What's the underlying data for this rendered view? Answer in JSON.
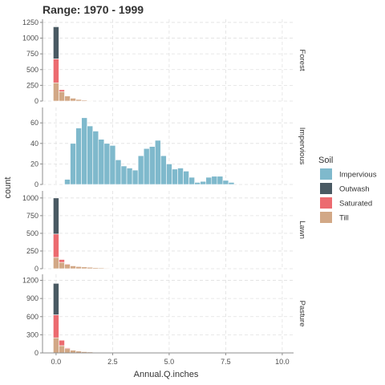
{
  "chart_data": {
    "type": "bar",
    "subtype": "faceted stacked histogram",
    "title": "Range: 1970 - 1999",
    "xlabel": "Annual.Q.inches",
    "ylabel": "count",
    "xlim": [
      -0.6,
      10.5
    ],
    "x_ticks": [
      0,
      2.5,
      5,
      7.5,
      10
    ],
    "x_tick_labels": [
      "0.0",
      "2.5",
      "5.0",
      "7.5",
      "10.0"
    ],
    "bin_width": 0.25,
    "legend": {
      "title": "Soil",
      "position": "right",
      "entries": [
        {
          "name": "Impervious",
          "color": "#7fb9cc"
        },
        {
          "name": "Outwash",
          "color": "#4a5a63"
        },
        {
          "name": "Saturated",
          "color": "#ec6b70"
        },
        {
          "name": "Till",
          "color": "#d2a886"
        }
      ]
    },
    "stack_order": [
      "Till",
      "Saturated",
      "Outwash",
      "Impervious"
    ],
    "facets": [
      {
        "label": "Forest",
        "ylim": [
          0,
          1300
        ],
        "y_ticks": [
          0,
          250,
          500,
          750,
          1000,
          1250
        ],
        "bins_x": [
          0,
          0.25,
          0.5,
          0.75,
          1.0,
          1.25,
          1.5
        ],
        "series": [
          {
            "name": "Till",
            "values": [
              290,
              150,
              80,
              45,
              25,
              15,
              8
            ]
          },
          {
            "name": "Saturated",
            "values": [
              380,
              30,
              0,
              0,
              0,
              0,
              0
            ]
          },
          {
            "name": "Outwash",
            "values": [
              510,
              0,
              0,
              0,
              0,
              0,
              0
            ]
          }
        ]
      },
      {
        "label": "Impervious",
        "ylim": [
          0,
          75
        ],
        "y_ticks": [
          0,
          20,
          40,
          60
        ],
        "bins_x": [
          0.5,
          0.75,
          1.0,
          1.25,
          1.5,
          1.75,
          2.0,
          2.25,
          2.5,
          2.75,
          3.0,
          3.25,
          3.5,
          3.75,
          4.0,
          4.25,
          4.5,
          4.75,
          5.0,
          5.25,
          5.5,
          5.75,
          6.0,
          6.25,
          6.5,
          6.75,
          7.0,
          7.25,
          7.5,
          7.75
        ],
        "series": [
          {
            "name": "Impervious",
            "values": [
              5,
              40,
              55,
              65,
              57,
              52,
              44,
              40,
              38,
              24,
              18,
              16,
              14,
              28,
              35,
              37,
              43,
              28,
              20,
              15,
              16,
              13,
              7,
              2,
              3,
              7,
              8,
              8,
              4,
              2
            ]
          }
        ]
      },
      {
        "label": "Lawn",
        "ylim": [
          0,
          1100
        ],
        "y_ticks": [
          0,
          250,
          500,
          750,
          1000
        ],
        "bins_x": [
          0,
          0.25,
          0.5,
          0.75,
          1.0,
          1.25,
          1.5,
          1.75,
          2.0,
          2.25,
          2.5
        ],
        "series": [
          {
            "name": "Till",
            "values": [
              160,
              90,
              60,
              40,
              30,
              25,
              20,
              15,
              12,
              8,
              5
            ]
          },
          {
            "name": "Saturated",
            "values": [
              330,
              40,
              10,
              0,
              0,
              0,
              0,
              0,
              0,
              0,
              0
            ]
          },
          {
            "name": "Outwash",
            "values": [
              510,
              0,
              0,
              0,
              0,
              0,
              0,
              0,
              0,
              0,
              0
            ]
          }
        ]
      },
      {
        "label": "Pasture",
        "ylim": [
          0,
          1300
        ],
        "y_ticks": [
          0,
          300,
          600,
          900,
          1200
        ],
        "bins_x": [
          0,
          0.25,
          0.5,
          0.75,
          1.0,
          1.25,
          1.5,
          1.75,
          2.0
        ],
        "series": [
          {
            "name": "Till",
            "values": [
              250,
              120,
              70,
              45,
              30,
              20,
              15,
              10,
              5
            ]
          },
          {
            "name": "Saturated",
            "values": [
              380,
              90,
              15,
              0,
              0,
              0,
              0,
              0,
              0
            ]
          },
          {
            "name": "Outwash",
            "values": [
              520,
              0,
              0,
              0,
              0,
              0,
              0,
              0,
              0
            ]
          }
        ]
      }
    ]
  }
}
